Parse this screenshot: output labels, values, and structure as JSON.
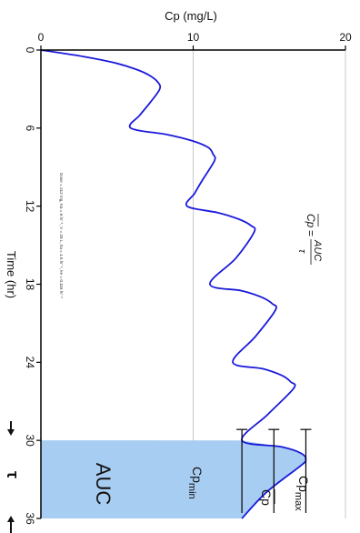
{
  "chart_data": {
    "type": "line",
    "orientation": "rotated-90-clockwise",
    "xlabel": "Time (hr)",
    "ylabel": "Cp (mg/L)",
    "xlim": [
      0,
      36
    ],
    "ylim": [
      0,
      20
    ],
    "x_ticks": [
      "0",
      "6",
      "12",
      "18",
      "24",
      "30",
      "36"
    ],
    "y_ticks": [
      "0",
      "10",
      "20"
    ],
    "grid": true,
    "series": [
      {
        "points": [
          [
            0,
            0
          ],
          [
            0.5,
            2.8
          ],
          [
            1,
            4.9
          ],
          [
            1.5,
            6.3
          ],
          [
            2,
            7.2
          ],
          [
            2.5,
            7.7
          ],
          [
            3,
            7.8
          ],
          [
            4,
            7.2
          ],
          [
            5,
            6.5
          ],
          [
            6,
            5.9
          ],
          [
            6.5,
            8.3
          ],
          [
            7,
            10.0
          ],
          [
            7.5,
            11.0
          ],
          [
            8,
            11.3
          ],
          [
            8.5,
            11.4
          ],
          [
            10,
            10.6
          ],
          [
            11,
            10.1
          ],
          [
            12,
            9.6
          ],
          [
            12.5,
            11.6
          ],
          [
            13,
            13.0
          ],
          [
            13.5,
            13.8
          ],
          [
            14,
            14.0
          ],
          [
            16,
            12.8
          ],
          [
            18,
            11.1
          ],
          [
            18.5,
            13.2
          ],
          [
            19,
            14.5
          ],
          [
            19.5,
            15.2
          ],
          [
            20,
            15.4
          ],
          [
            22,
            14.1
          ],
          [
            24,
            12.6
          ],
          [
            24.5,
            14.6
          ],
          [
            25,
            15.8
          ],
          [
            25.5,
            16.4
          ],
          [
            26,
            16.6
          ],
          [
            28,
            14.9
          ],
          [
            30,
            13.2
          ],
          [
            30.5,
            15.8
          ],
          [
            31,
            17.1
          ],
          [
            31.5,
            17.4
          ],
          [
            32,
            17.0
          ],
          [
            34,
            14.8
          ],
          [
            36,
            13.2
          ]
        ]
      }
    ],
    "reference_lines": {
      "cp_min": 13.2,
      "cp_avg": 15.3,
      "cp_max": 17.4
    },
    "shaded_interval": [
      30,
      36
    ]
  },
  "annotations": {
    "auc": "AUC",
    "cp_min": "Cp",
    "cp_min_sub": "min",
    "cp_max": "Cp",
    "cp_max_sub": "max",
    "cp_bar": "Cp",
    "formula_left": "Cp",
    "formula_eq": "=",
    "formula_num": "AUC",
    "formula_den": "τ",
    "dosing_note": "Dose = 212 mg, Ka = 6 hr⁻¹, V = 26 L, ka = 1.5 hr⁻¹, ke = 0.116 hr⁻¹",
    "tau": "τ"
  },
  "colors": {
    "curve": "#1a1adb",
    "auc_fill": "#a8cdf2",
    "grid": "#c8c8c8",
    "axis": "#000000"
  }
}
